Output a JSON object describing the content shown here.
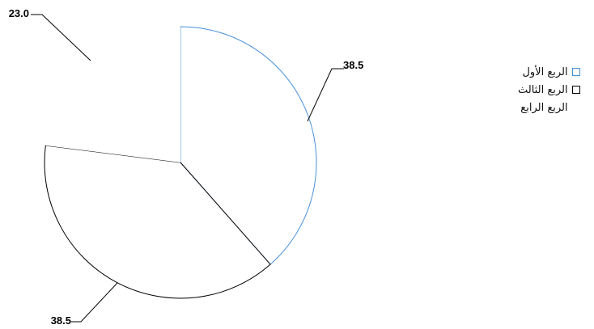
{
  "chart_data": {
    "type": "pie",
    "slices": [
      {
        "label": "الربع الأول",
        "value": 38.5,
        "value_label": "38.5",
        "stroke": "#4a90d9",
        "fill": "#ffffff"
      },
      {
        "label": "الربع الثالث",
        "value": 38.5,
        "value_label": "38.5",
        "stroke": "#000000",
        "fill": "#ffffff"
      },
      {
        "label": "الربع الرابع",
        "value": 23.0,
        "value_label": "23.0",
        "stroke": "none",
        "fill": "#ffffff"
      }
    ],
    "legend_position": "right"
  }
}
